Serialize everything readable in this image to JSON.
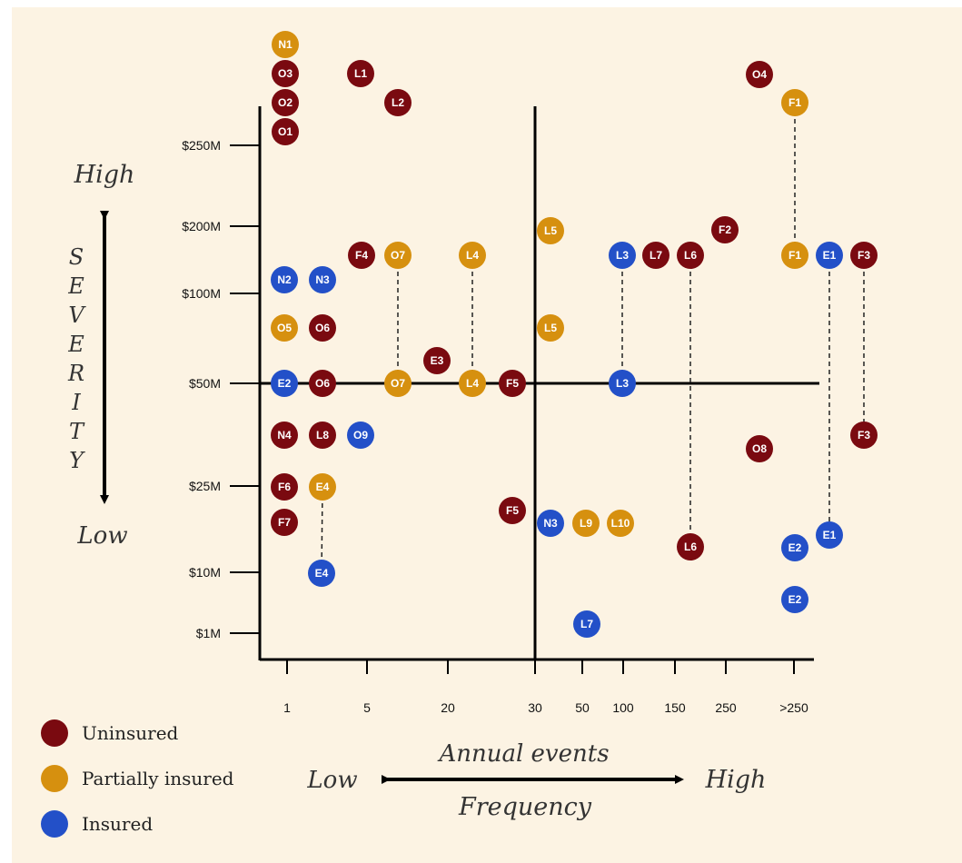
{
  "chart_data": {
    "type": "scatter",
    "title": "",
    "xlabel": "Annual events",
    "ylabel": "SEVERITY",
    "x_axis_caption": "Frequency",
    "x_low_label": "Low",
    "x_high_label": "High",
    "y_high_label": "High",
    "y_low_label": "Low",
    "x_categories": [
      "1",
      "5",
      "20",
      "30",
      "50",
      "100",
      "150",
      "250",
      ">250"
    ],
    "y_ticks": [
      "$1M",
      "$10M",
      "$25M",
      "$50M",
      "$100M",
      "$200M",
      "$250M"
    ],
    "legend": [
      {
        "key": "uninsured",
        "label": "Uninsured",
        "color": "#7a0a10"
      },
      {
        "key": "partial",
        "label": "Partially insured",
        "color": "#d6900f"
      },
      {
        "key": "insured",
        "label": "Insured",
        "color": "#2350c8"
      }
    ],
    "points": [
      {
        "label": "N1",
        "status": "partial",
        "x": "1",
        "y": "> $250M"
      },
      {
        "label": "O3",
        "status": "uninsured",
        "x": "1",
        "y": "> $250M"
      },
      {
        "label": "O2",
        "status": "uninsured",
        "x": "1",
        "y": "> $250M"
      },
      {
        "label": "O1",
        "status": "uninsured",
        "x": "1",
        "y": "> $250M"
      },
      {
        "label": "L1",
        "status": "uninsured",
        "x": "5",
        "y": "> $250M"
      },
      {
        "label": "L2",
        "status": "uninsured",
        "x": "5-20",
        "y": "> $250M"
      },
      {
        "label": "O4",
        "status": "uninsured",
        "x": "250-300",
        "y": "> $250M"
      },
      {
        "label": "F1",
        "status": "partial",
        "x": ">250",
        "y": "> $250M"
      },
      {
        "label": "F1",
        "status": "partial",
        "x": ">250",
        "y": "$100M-$200M"
      },
      {
        "label": "L5",
        "status": "partial",
        "x": "30-50",
        "y": "$200M"
      },
      {
        "label": "F2",
        "status": "uninsured",
        "x": "250",
        "y": "$200M"
      },
      {
        "label": "F4",
        "status": "uninsured",
        "x": "5",
        "y": "$100M-$200M"
      },
      {
        "label": "O7",
        "status": "partial",
        "x": "5-20",
        "y": "$100M-$200M"
      },
      {
        "label": "L4",
        "status": "partial",
        "x": "20-30",
        "y": "$100M-$200M"
      },
      {
        "label": "L3",
        "status": "insured",
        "x": "100",
        "y": "$100M-$200M"
      },
      {
        "label": "L7",
        "status": "uninsured",
        "x": "100-150",
        "y": "$100M-$200M"
      },
      {
        "label": "L6",
        "status": "uninsured",
        "x": "150-250",
        "y": "$100M-$200M"
      },
      {
        "label": "E1",
        "status": "insured",
        "x": ">250",
        "y": "$100M-$200M"
      },
      {
        "label": "F3",
        "status": "uninsured",
        "x": ">250",
        "y": "$100M-$200M"
      },
      {
        "label": "N2",
        "status": "insured",
        "x": "1",
        "y": "$100M"
      },
      {
        "label": "N3",
        "status": "insured",
        "x": "1-5",
        "y": "$100M"
      },
      {
        "label": "O5",
        "status": "partial",
        "x": "1",
        "y": "$50M-$100M"
      },
      {
        "label": "O6",
        "status": "uninsured",
        "x": "1-5",
        "y": "$50M-$100M"
      },
      {
        "label": "L5",
        "status": "partial",
        "x": "30-50",
        "y": "$50M-$100M"
      },
      {
        "label": "E3",
        "status": "uninsured",
        "x": "20",
        "y": "$50M-$100M"
      },
      {
        "label": "E2",
        "status": "insured",
        "x": "1",
        "y": "$50M"
      },
      {
        "label": "O6",
        "status": "uninsured",
        "x": "1-5",
        "y": "$50M"
      },
      {
        "label": "O7",
        "status": "partial",
        "x": "5-20",
        "y": "$50M"
      },
      {
        "label": "L4",
        "status": "partial",
        "x": "20-30",
        "y": "$50M"
      },
      {
        "label": "F5",
        "status": "uninsured",
        "x": "20-30",
        "y": "$50M"
      },
      {
        "label": "L3",
        "status": "insured",
        "x": "100",
        "y": "$50M"
      },
      {
        "label": "N4",
        "status": "uninsured",
        "x": "1",
        "y": "$25M-$50M"
      },
      {
        "label": "L8",
        "status": "uninsured",
        "x": "1-5",
        "y": "$25M-$50M"
      },
      {
        "label": "O9",
        "status": "insured",
        "x": "5",
        "y": "$25M-$50M"
      },
      {
        "label": "F3",
        "status": "uninsured",
        "x": ">250",
        "y": "$25M-$50M"
      },
      {
        "label": "O8",
        "status": "uninsured",
        "x": "250-300",
        "y": "$25M-$50M"
      },
      {
        "label": "F6",
        "status": "uninsured",
        "x": "1",
        "y": "$25M"
      },
      {
        "label": "E4",
        "status": "partial",
        "x": "1-5",
        "y": "$25M"
      },
      {
        "label": "F7",
        "status": "uninsured",
        "x": "1",
        "y": "$10M-$25M"
      },
      {
        "label": "F5",
        "status": "uninsured",
        "x": "20-30",
        "y": "$10M-$25M"
      },
      {
        "label": "N3",
        "status": "insured",
        "x": "30-50",
        "y": "$10M-$25M"
      },
      {
        "label": "L9",
        "status": "partial",
        "x": "50",
        "y": "$10M-$25M"
      },
      {
        "label": "L10",
        "status": "partial",
        "x": "100",
        "y": "$10M-$25M"
      },
      {
        "label": "L6",
        "status": "uninsured",
        "x": "150-250",
        "y": "$10M-$25M"
      },
      {
        "label": "E1",
        "status": "insured",
        "x": ">250",
        "y": "$10M-$25M"
      },
      {
        "label": "E2",
        "status": "insured",
        "x": ">250",
        "y": "$10M-$25M"
      },
      {
        "label": "E4",
        "status": "insured",
        "x": "1-5",
        "y": "$10M"
      },
      {
        "label": "E2",
        "status": "insured",
        "x": ">250",
        "y": "$1M-$10M"
      },
      {
        "label": "L7",
        "status": "insured",
        "x": "50",
        "y": "$1M"
      }
    ],
    "connections": [
      [
        "F1",
        "F1"
      ],
      [
        "O7",
        "O7"
      ],
      [
        "L4",
        "L4"
      ],
      [
        "L3",
        "L3"
      ],
      [
        "L6",
        "L6"
      ],
      [
        "E1",
        "E1"
      ],
      [
        "F3",
        "F3"
      ],
      [
        "E4",
        "E4"
      ]
    ]
  }
}
